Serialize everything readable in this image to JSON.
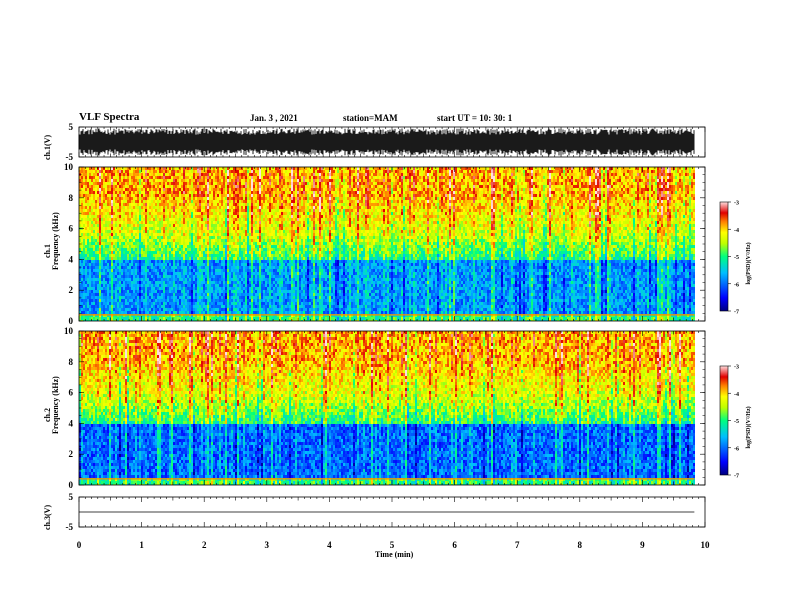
{
  "header": {
    "title": "VLF Spectra",
    "date": "Jan. 3 , 2021",
    "station": "station=MAM",
    "start_time": "start UT = 10: 30: 1"
  },
  "colors": {
    "colormap": [
      "#00007f",
      "#0000ff",
      "#00bfff",
      "#00ff7f",
      "#bfff00",
      "#ffff00",
      "#ff7f00",
      "#e00000",
      "#ffdede"
    ]
  },
  "chart_data": [
    {
      "type": "line",
      "name": "waveform-ch1",
      "ylabel": "ch.1(V)",
      "ylim": [
        -5,
        5
      ],
      "yticks": [
        "5",
        "-5"
      ],
      "xlim": [
        0,
        10
      ],
      "description_of_signal": "dense oscillating voltage trace"
    },
    {
      "type": "heatmap",
      "name": "spectrogram-ch1",
      "ylabel": "ch.1 Frequency (kHz)",
      "ylim": [
        0,
        10
      ],
      "yticks": [
        "0",
        "2",
        "4",
        "6",
        "8",
        "10"
      ],
      "xlim": [
        0,
        9.83
      ],
      "colorbar": {
        "label": "log(PSD)(V²/Hz)",
        "range": [
          -7,
          -3
        ],
        "ticks": [
          "-3",
          "-4",
          "-5",
          "-6",
          "-7"
        ]
      }
    },
    {
      "type": "heatmap",
      "name": "spectrogram-ch2",
      "ylabel": "ch.2 Frequency (kHz)",
      "ylim": [
        0,
        10
      ],
      "yticks": [
        "0",
        "2",
        "4",
        "6",
        "8",
        "10"
      ],
      "xlim": [
        0,
        9.83
      ],
      "colorbar": {
        "label": "log(PSD)(V²/Hz)",
        "range": [
          -7,
          -3
        ],
        "ticks": [
          "-3",
          "-4",
          "-5",
          "-6",
          "-7"
        ]
      }
    },
    {
      "type": "line",
      "name": "waveform-ch3",
      "ylabel": "ch.3(V)",
      "ylim": [
        -5,
        5
      ],
      "yticks": [
        "5",
        "-5"
      ],
      "values": [
        0,
        0
      ],
      "x": [
        0,
        9.83
      ]
    }
  ],
  "xaxis": {
    "label": "Time (min)",
    "ticks": [
      "0",
      "1",
      "2",
      "3",
      "4",
      "5",
      "6",
      "7",
      "8",
      "9",
      "10"
    ]
  },
  "ylabels": {
    "ch1_wave": "ch.1(V)",
    "ch1_spec_a": "ch.1",
    "ch1_spec_b": "Frequency (kHz)",
    "ch2_spec_a": "ch.2",
    "ch2_spec_b": "Frequency (kHz)",
    "ch3_wave": "ch.3(V)"
  }
}
